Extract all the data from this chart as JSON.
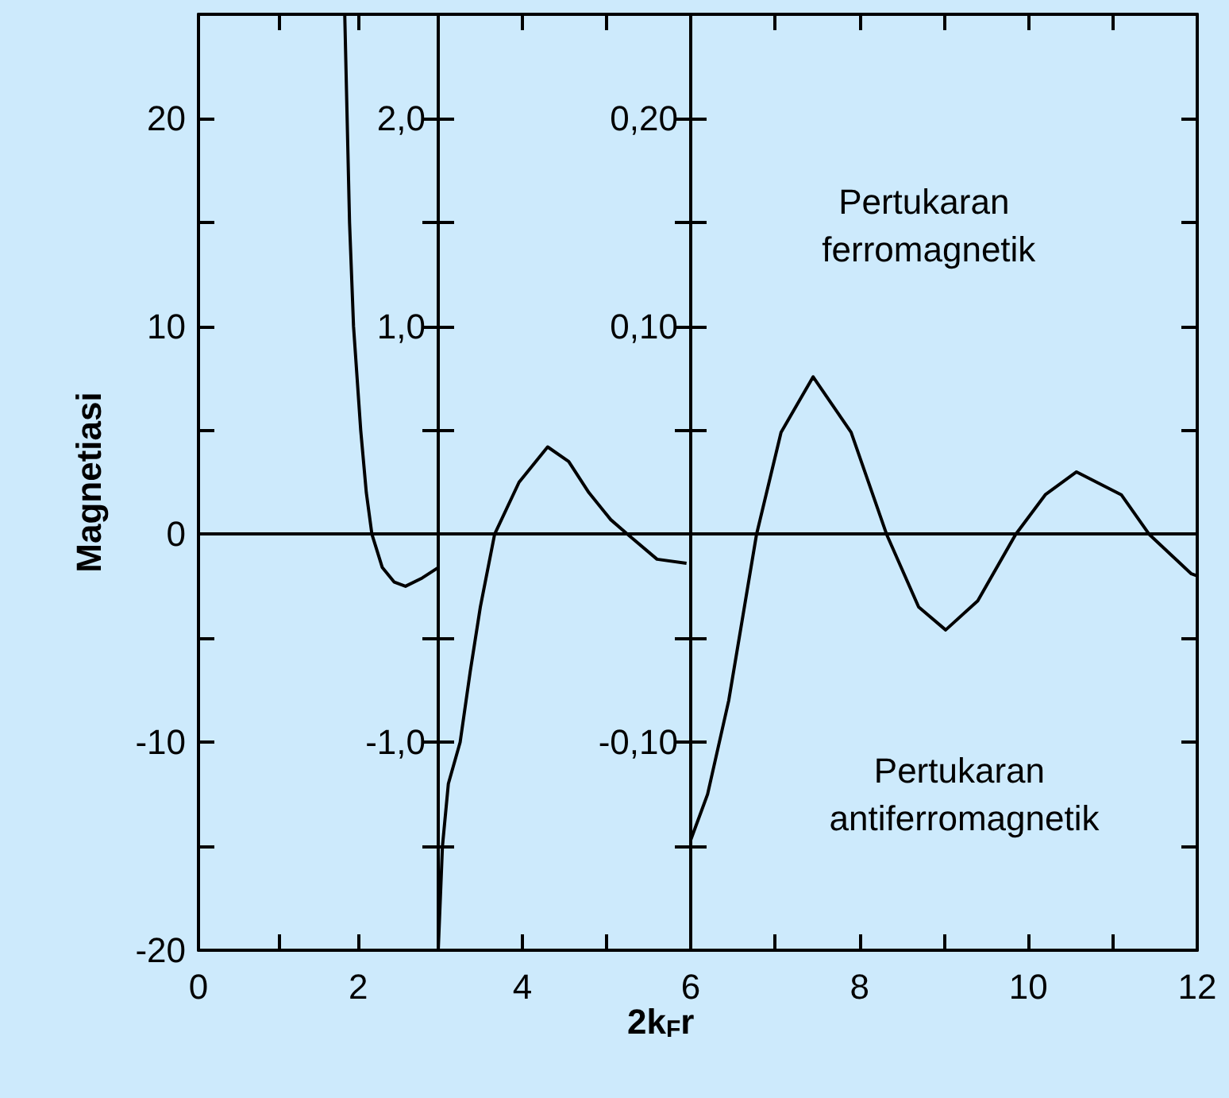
{
  "chart_data": [
    {
      "type": "line",
      "ylabel": "Magnetiasi",
      "xlim": [
        0,
        3
      ],
      "xticks": [
        0,
        {
          "value": 1,
          "label": null
        },
        2
      ],
      "ylim": [
        -20,
        25
      ],
      "yticks": [
        -20,
        {
          "value": -15,
          "label": null
        },
        -10,
        {
          "value": -5,
          "label": null
        },
        0,
        {
          "value": 5,
          "label": null
        },
        10,
        {
          "value": 15,
          "label": null
        },
        20
      ],
      "grid": false,
      "marker": "none",
      "line_style": "solid",
      "ref_lines": [
        {
          "axis": "y",
          "value": 0
        }
      ],
      "series": [
        {
          "color": "#000000",
          "x": [
            1.83,
            1.86,
            1.89,
            1.94,
            2.03,
            2.1,
            2.17,
            2.3,
            2.45,
            2.59,
            2.8,
            3
          ],
          "values": [
            25,
            20,
            15,
            10,
            5,
            2,
            0,
            -1.6,
            -2.3,
            -2.5,
            -2.1,
            -1.6
          ]
        }
      ]
    },
    {
      "type": "line",
      "xlim": [
        3,
        6
      ],
      "xticks": [
        4,
        {
          "value": 5,
          "label": null
        },
        6
      ],
      "ylim": [
        -2,
        2.5
      ],
      "yticks": [
        {
          "value": -1.5,
          "label": null
        },
        {
          "value": -1,
          "label": "-1,0"
        },
        {
          "value": -0.5,
          "label": null
        },
        {
          "value": 0.5,
          "label": null
        },
        {
          "value": 1,
          "label": "1,0"
        },
        {
          "value": 1.5,
          "label": null
        },
        {
          "value": 2,
          "label": "2,0"
        }
      ],
      "grid": false,
      "marker": "none",
      "line_style": "solid",
      "ref_lines": [
        {
          "axis": "y",
          "value": 0
        }
      ],
      "series": [
        {
          "color": "#000000",
          "x": [
            3,
            3.05,
            3.12,
            3.26,
            3.38,
            3.5,
            3.67,
            3.96,
            4.3,
            4.55,
            4.79,
            5.05,
            5.25,
            5.6,
            5.95
          ],
          "values": [
            -2,
            -1.5,
            -1.2,
            -1,
            -0.66,
            -0.35,
            0,
            0.25,
            0.42,
            0.35,
            0.2,
            0.07,
            0,
            -0.12,
            -0.14
          ]
        }
      ]
    },
    {
      "type": "line",
      "xlabel": "2k$_{F}$r",
      "xlim": [
        6,
        12
      ],
      "xticks": [
        {
          "value": 7,
          "label": null
        },
        8,
        {
          "value": 9,
          "label": null
        },
        10,
        {
          "value": 11,
          "label": null
        },
        12
      ],
      "ylim": [
        -0.2,
        0.25
      ],
      "yticks": [
        {
          "value": -0.15,
          "label": null
        },
        {
          "value": -0.1,
          "label": "-0,10"
        },
        {
          "value": -0.05,
          "label": null
        },
        {
          "value": 0.05,
          "label": null
        },
        {
          "value": 0.1,
          "label": "0,10"
        },
        {
          "value": 0.15,
          "label": null
        },
        {
          "value": 0.2,
          "label": "0,20"
        }
      ],
      "grid": false,
      "marker": "none",
      "line_style": "solid",
      "ref_lines": [
        {
          "axis": "y",
          "value": 0
        }
      ],
      "annotations": [
        "Pertukaran ferromagnetik",
        "Pertukaran antiferromagnetik"
      ],
      "series": [
        {
          "color": "#000000",
          "x": [
            6,
            6.2,
            6.45,
            6.78,
            7.07,
            7.45,
            7.9,
            8.32,
            8.7,
            9.02,
            9.4,
            9.85,
            10.2,
            10.57,
            11.1,
            11.43,
            11.93,
            12
          ],
          "values": [
            -0.147,
            -0.125,
            -0.08,
            0,
            0.049,
            0.0757,
            0.049,
            0,
            -0.035,
            -0.046,
            -0.032,
            0,
            0.019,
            0.03,
            0.019,
            0,
            -0.019,
            -0.02
          ]
        }
      ]
    }
  ]
}
